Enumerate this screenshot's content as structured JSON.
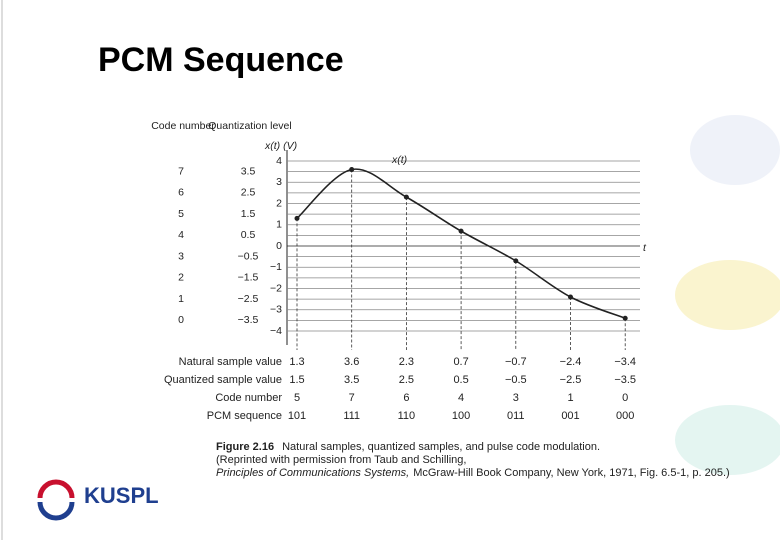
{
  "slide_title": "PCM Sequence",
  "chart_data": {
    "type": "line",
    "y_label": "x(t) (V)",
    "curve_label": "x(t)",
    "x_label": "t",
    "code_header": "Code number",
    "level_header": "Quantization level",
    "levels": [
      {
        "code": "7",
        "level": {
          "value": 3.5,
          "label": "3.5"
        }
      },
      {
        "code": "6",
        "level": {
          "value": 2.5,
          "label": "2.5"
        }
      },
      {
        "code": "5",
        "level": {
          "value": 1.5,
          "label": "1.5"
        }
      },
      {
        "code": "4",
        "level": {
          "value": 0.5,
          "label": "0.5"
        }
      },
      {
        "code": "3",
        "level": {
          "value": -0.5,
          "label": "−0.5"
        }
      },
      {
        "code": "2",
        "level": {
          "value": -1.5,
          "label": "−1.5"
        }
      },
      {
        "code": "1",
        "level": {
          "value": -2.5,
          "label": "−2.5"
        }
      },
      {
        "code": "0",
        "level": {
          "value": -3.5,
          "label": "−3.5"
        }
      }
    ],
    "ylim": [
      -4,
      4
    ],
    "yticks": [
      4,
      3,
      2,
      1,
      0,
      {
        "value": -1,
        "label": "−1"
      },
      {
        "value": -2,
        "label": "−2"
      },
      {
        "value": -3,
        "label": "−3"
      },
      {
        "value": -4,
        "label": "−4"
      }
    ],
    "grid": true,
    "series": [
      {
        "name": "Natural sample value",
        "color": "#222222",
        "values": [
          1.3,
          3.6,
          2.3,
          0.7,
          -0.7,
          -2.4,
          -3.4
        ],
        "value_labels": [
          "1.3",
          "3.6",
          "2.3",
          "0.7",
          "−0.7",
          "−2.4",
          "−3.4"
        ]
      }
    ]
  },
  "table": {
    "rows": [
      {
        "label": "Quantized sample value",
        "cells": [
          "1.5",
          "3.5",
          "2.5",
          "0.5",
          "−0.5",
          "−2.5",
          "−3.5"
        ]
      },
      {
        "label": "Code number",
        "cells": [
          "5",
          "7",
          "6",
          "4",
          "3",
          "1",
          "0"
        ]
      },
      {
        "label": "PCM sequence",
        "cells": [
          "101",
          "111",
          "110",
          "100",
          "011",
          "001",
          "000"
        ]
      }
    ]
  },
  "caption": {
    "label": "Figure 2.16",
    "text": "Natural samples, quantized samples, and pulse code modulation.",
    "line2": "(Reprinted with permission from Taub and Schilling,",
    "italic": "Principles of Communications Systems,",
    "rest": "McGraw-Hill Book Company, New York, 1971, Fig. 6.5-1, p. 205.)"
  },
  "logo": "KUSPL"
}
